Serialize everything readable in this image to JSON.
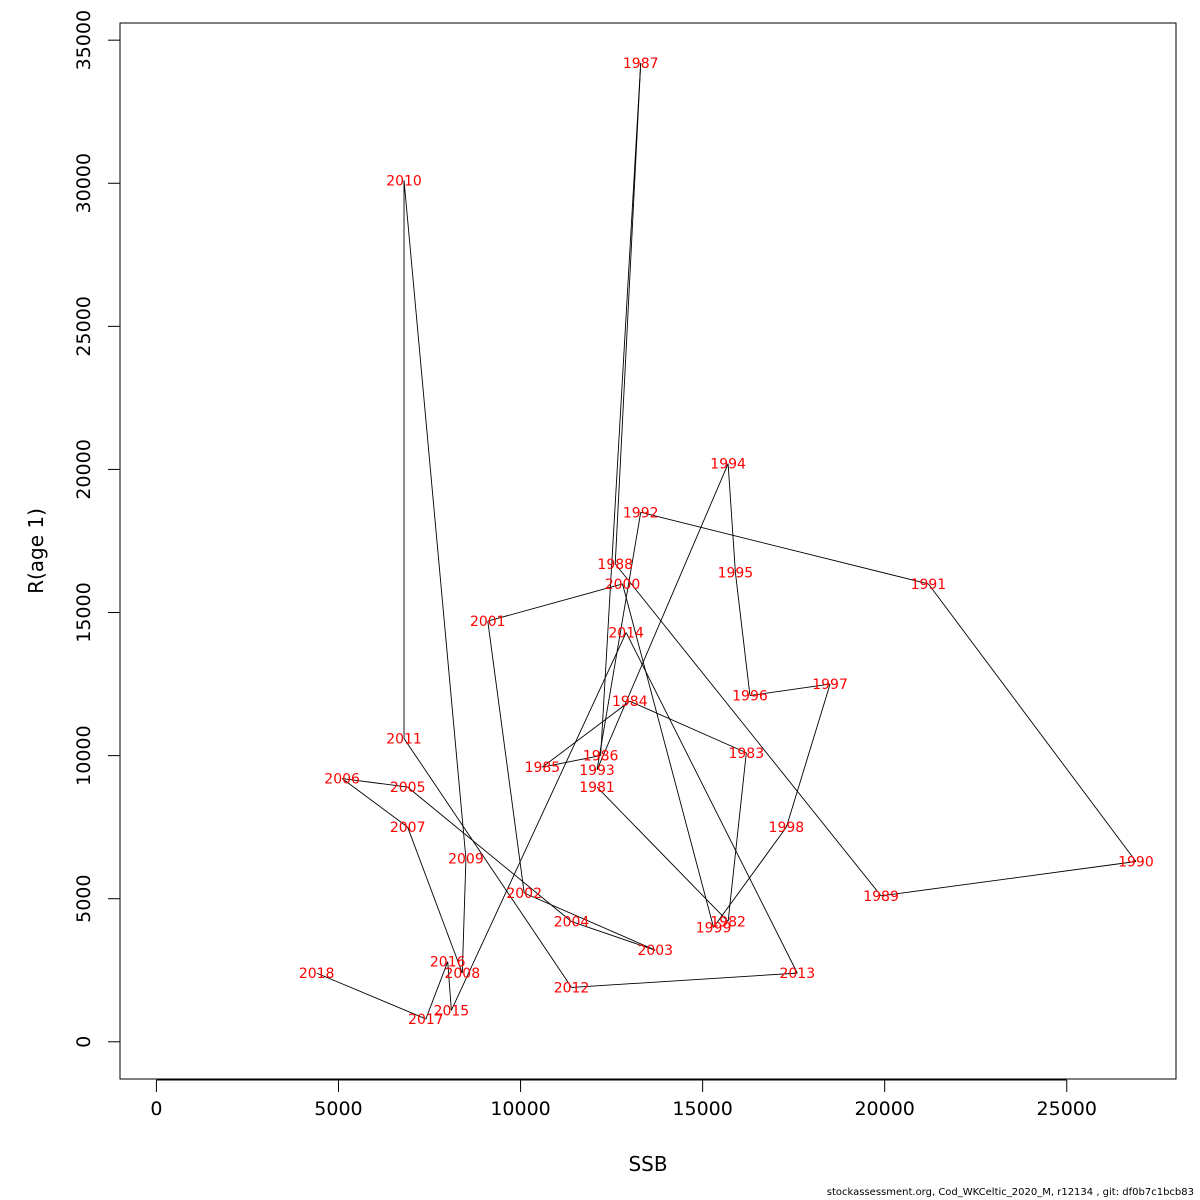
{
  "chart_data": {
    "type": "line",
    "xlabel": "SSB",
    "ylabel": "R(age 1)",
    "xlim": [
      -1000,
      28000
    ],
    "ylim": [
      -1300,
      35600
    ],
    "xticks": [
      0,
      5000,
      10000,
      15000,
      20000,
      25000
    ],
    "yticks": [
      0,
      5000,
      10000,
      15000,
      20000,
      25000,
      30000,
      35000
    ],
    "xtick_labels": [
      "0",
      "5000",
      "10000",
      "15000",
      "20000",
      "25000"
    ],
    "ytick_labels": [
      "0",
      "5000",
      "10000",
      "15000",
      "20000",
      "25000",
      "30000",
      "35000"
    ],
    "grid": false,
    "line_color": "#000000",
    "label_color": "#ff0000",
    "points": [
      {
        "label": "1981",
        "x": 12100,
        "y": 8900
      },
      {
        "label": "1982",
        "x": 15700,
        "y": 4200
      },
      {
        "label": "1983",
        "x": 16200,
        "y": 10100
      },
      {
        "label": "1984",
        "x": 13000,
        "y": 11900
      },
      {
        "label": "1985",
        "x": 10600,
        "y": 9600
      },
      {
        "label": "1986",
        "x": 12200,
        "y": 10000
      },
      {
        "label": "1987",
        "x": 13300,
        "y": 34200
      },
      {
        "label": "1988",
        "x": 12600,
        "y": 16700
      },
      {
        "label": "1989",
        "x": 19900,
        "y": 5100
      },
      {
        "label": "1990",
        "x": 26900,
        "y": 6300
      },
      {
        "label": "1991",
        "x": 21200,
        "y": 16000
      },
      {
        "label": "1992",
        "x": 13300,
        "y": 18500
      },
      {
        "label": "1993",
        "x": 12100,
        "y": 9500
      },
      {
        "label": "1994",
        "x": 15700,
        "y": 20200
      },
      {
        "label": "1995",
        "x": 15900,
        "y": 16400
      },
      {
        "label": "1996",
        "x": 16300,
        "y": 12100
      },
      {
        "label": "1997",
        "x": 18500,
        "y": 12500
      },
      {
        "label": "1998",
        "x": 17300,
        "y": 7500
      },
      {
        "label": "1999",
        "x": 15300,
        "y": 4000
      },
      {
        "label": "2000",
        "x": 12800,
        "y": 16000
      },
      {
        "label": "2001",
        "x": 9100,
        "y": 14700
      },
      {
        "label": "2002",
        "x": 10100,
        "y": 5200
      },
      {
        "label": "2003",
        "x": 13700,
        "y": 3200
      },
      {
        "label": "2004",
        "x": 11400,
        "y": 4200
      },
      {
        "label": "2005",
        "x": 6900,
        "y": 8900
      },
      {
        "label": "2006",
        "x": 5100,
        "y": 9200
      },
      {
        "label": "2007",
        "x": 6900,
        "y": 7500
      },
      {
        "label": "2008",
        "x": 8400,
        "y": 2400
      },
      {
        "label": "2009",
        "x": 8500,
        "y": 6400
      },
      {
        "label": "2010",
        "x": 6800,
        "y": 30100
      },
      {
        "label": "2011",
        "x": 6800,
        "y": 10600
      },
      {
        "label": "2012",
        "x": 11400,
        "y": 1900
      },
      {
        "label": "2013",
        "x": 17600,
        "y": 2400
      },
      {
        "label": "2014",
        "x": 12900,
        "y": 14300
      },
      {
        "label": "2015",
        "x": 8100,
        "y": 1100
      },
      {
        "label": "2016",
        "x": 8000,
        "y": 2800
      },
      {
        "label": "2017",
        "x": 7400,
        "y": 800
      },
      {
        "label": "2018",
        "x": 4400,
        "y": 2400
      }
    ]
  },
  "footer": "stockassessment.org, Cod_WKCeltic_2020_M, r12134 , git: df0b7c1bcb83"
}
